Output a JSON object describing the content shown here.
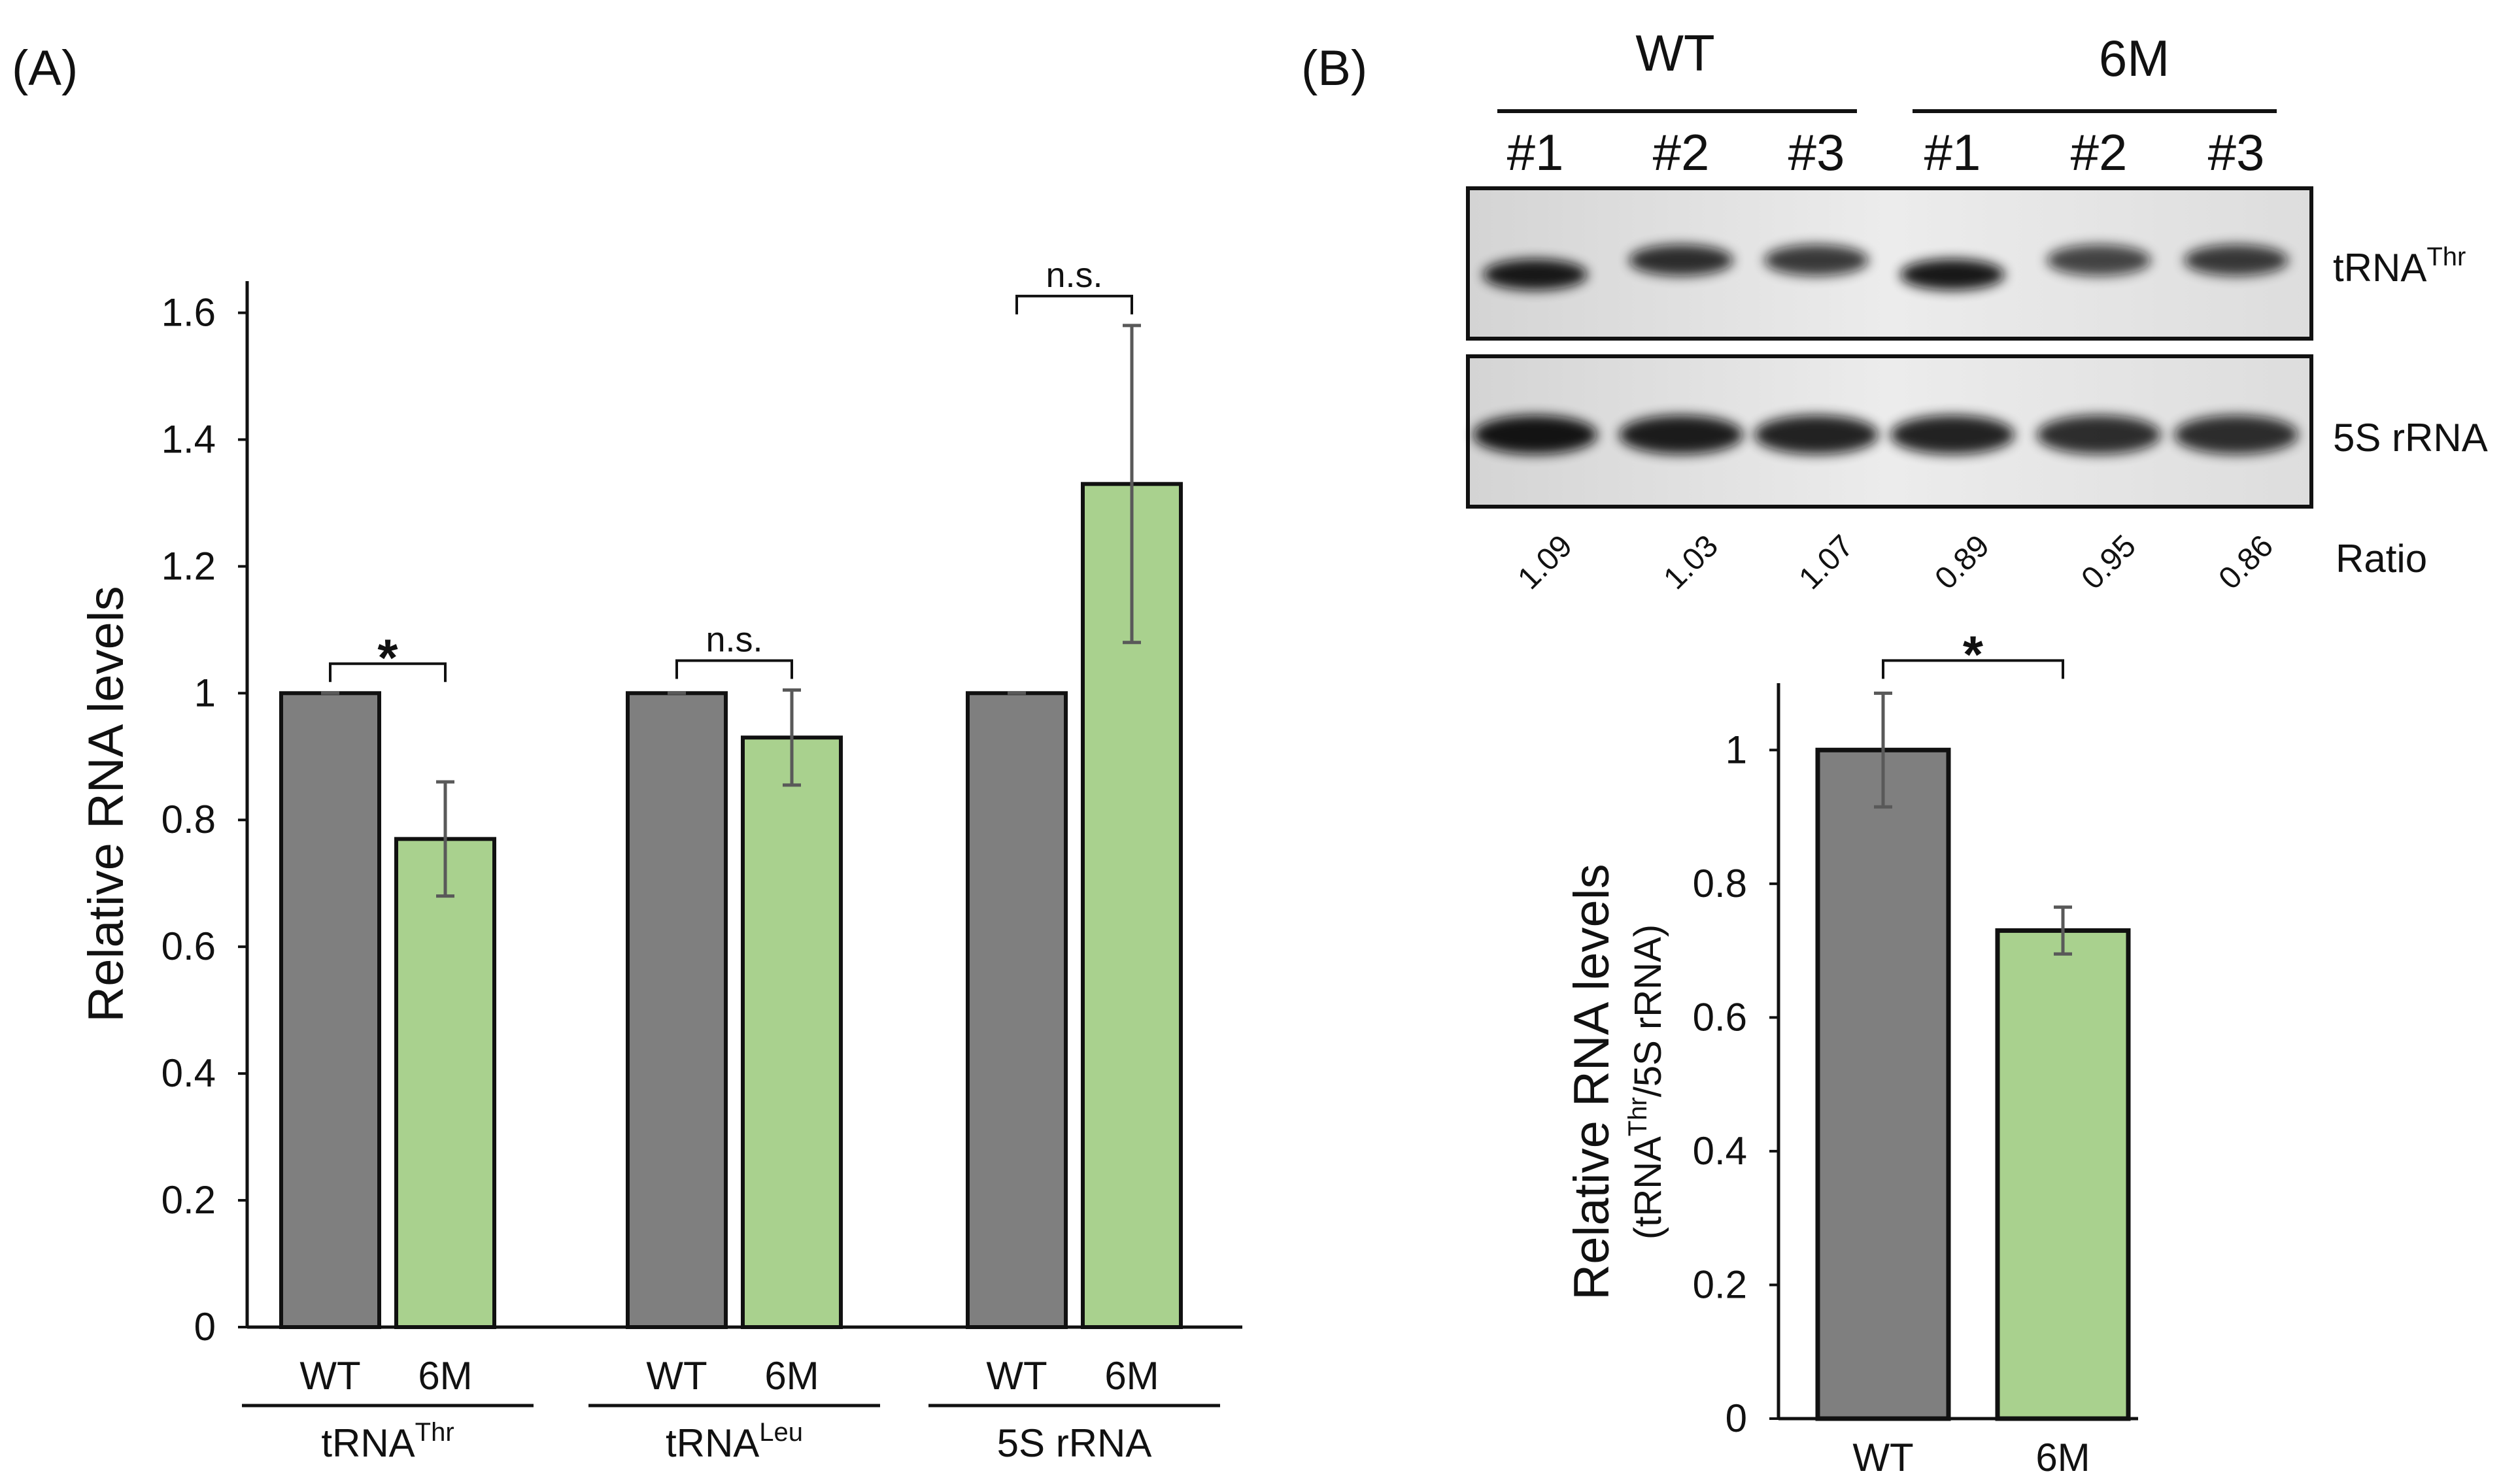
{
  "panels": {
    "a_label": "(A)",
    "b_label": "(B)"
  },
  "chart_data": [
    {
      "type": "bar",
      "panel": "(A)",
      "ylabel": "Relative RNA levels",
      "ylim": [
        0,
        1.65
      ],
      "yticks": [
        0,
        0.2,
        0.4,
        0.6,
        0.8,
        1,
        1.2,
        1.4,
        1.6
      ],
      "ytick_labels": [
        "0",
        "0.2",
        "0.4",
        "0.6",
        "0.8",
        "1",
        "1.2",
        "1.4",
        "1.6"
      ],
      "categories": [
        "tRNAThr",
        "tRNALeu",
        "5S rRNA"
      ],
      "category_labels": [
        {
          "base": "tRNA",
          "sup": "Thr"
        },
        {
          "base": "tRNA",
          "sup": "Leu"
        },
        {
          "base": "5S rRNA",
          "sup": ""
        }
      ],
      "series": [
        {
          "name": "WT",
          "color": "#7f7f7f",
          "values": [
            1.0,
            1.0,
            1.0
          ],
          "errors": [
            0.0,
            0.0,
            0.0
          ]
        },
        {
          "name": "6M",
          "color": "#a9d18e",
          "values": [
            0.77,
            0.93,
            1.33
          ],
          "errors": [
            0.09,
            0.075,
            0.25
          ]
        }
      ],
      "significance": [
        "*",
        "n.s.",
        "n.s."
      ]
    },
    {
      "type": "bar",
      "panel": "(B)",
      "ylabel": "Relative RNA levels",
      "ylabel_sub": {
        "prefix": "(tRNA",
        "sup": "Thr",
        "suffix": "/5S rRNA)"
      },
      "ylim": [
        0,
        1.1
      ],
      "yticks": [
        0,
        0.2,
        0.4,
        0.6,
        0.8,
        1
      ],
      "ytick_labels": [
        "0",
        "0.2",
        "0.4",
        "0.6",
        "0.8",
        "1"
      ],
      "categories": [
        "WT",
        "6M"
      ],
      "values": [
        1.0,
        0.73
      ],
      "errors": [
        0.085,
        0.035
      ],
      "colors": [
        "#7f7f7f",
        "#a9d18e"
      ],
      "significance": "*"
    }
  ],
  "blot": {
    "groups": [
      "WT",
      "6M"
    ],
    "lanes": [
      "#1",
      "#2",
      "#3",
      "#1",
      "#2",
      "#3"
    ],
    "probes": [
      {
        "base": "tRNA",
        "sup": "Thr"
      },
      {
        "base": "5S rRNA",
        "sup": ""
      }
    ],
    "ratio_label": "Ratio",
    "ratios": [
      "1.09",
      "1.03",
      "1.07",
      "0.89",
      "0.95",
      "0.86"
    ],
    "band_intensity_trna": [
      0.95,
      0.85,
      0.8,
      0.95,
      0.75,
      0.8
    ],
    "band_intensity_5s": [
      0.97,
      0.93,
      0.9,
      0.9,
      0.85,
      0.85
    ]
  }
}
